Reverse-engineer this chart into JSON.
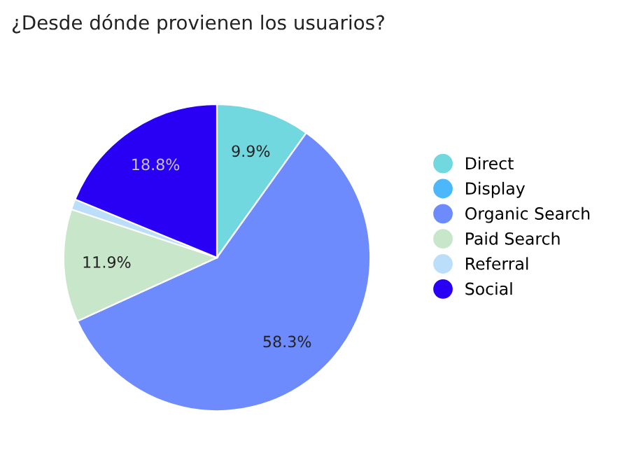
{
  "chart_data": {
    "type": "pie",
    "title": "¿Desde dónde provienen los usuarios?",
    "categories": [
      "Direct",
      "Display",
      "Organic Search",
      "Paid Search",
      "Referral",
      "Social"
    ],
    "values": [
      9.9,
      null,
      58.3,
      11.9,
      1.1,
      18.8
    ],
    "value_labels": [
      "9.9%",
      null,
      "58.3%",
      "11.9%",
      null,
      "18.8%"
    ],
    "colors": [
      "#71d8df",
      "#4cb8fb",
      "#6d8bfd",
      "#c8e6c9",
      "#bbdefb",
      "#2a00f4"
    ],
    "legend": "right"
  }
}
